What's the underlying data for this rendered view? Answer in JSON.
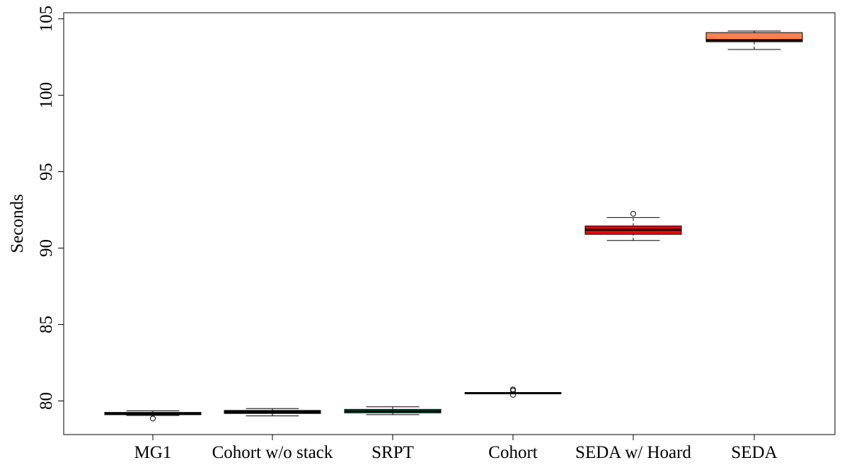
{
  "chart_data": {
    "type": "box",
    "title": "",
    "xlabel": "",
    "ylabel": "Seconds",
    "ylim": [
      77.8,
      105.4
    ],
    "yticks": [
      80,
      85,
      90,
      95,
      100,
      105
    ],
    "grid": false,
    "legend": "none",
    "categories": [
      "MG1",
      "Cohort w/o stack",
      "SRPT",
      "Cohort",
      "SEDA w/ Hoard",
      "SEDA"
    ],
    "boxes": [
      {
        "category": "MG1",
        "whisker_low": 79.05,
        "q1": 79.1,
        "median": 79.18,
        "q3": 79.25,
        "whisker_high": 79.35,
        "outliers": [
          78.85
        ],
        "color": "#2f8f8f"
      },
      {
        "category": "Cohort w/o stack",
        "whisker_low": 79.02,
        "q1": 79.18,
        "median": 79.28,
        "q3": 79.38,
        "whisker_high": 79.5,
        "outliers": [],
        "color": "#1a1a6e"
      },
      {
        "category": "SRPT",
        "whisker_low": 79.1,
        "q1": 79.22,
        "median": 79.33,
        "q3": 79.45,
        "whisker_high": 79.62,
        "outliers": [],
        "color": "#20b2aa"
      },
      {
        "category": "Cohort",
        "whisker_low": 80.48,
        "q1": 80.49,
        "median": 80.51,
        "q3": 80.53,
        "whisker_high": 80.55,
        "outliers": [
          80.4,
          80.68,
          80.75
        ],
        "color": "#87ceeb"
      },
      {
        "category": "SEDA w/ Hoard",
        "whisker_low": 90.5,
        "q1": 90.9,
        "median": 91.2,
        "q3": 91.45,
        "whisker_high": 92.0,
        "outliers": [
          92.25
        ],
        "color": "#ff0000"
      },
      {
        "category": "SEDA",
        "whisker_low": 103.0,
        "q1": 103.5,
        "median": 103.6,
        "q3": 104.1,
        "whisker_high": 104.2,
        "outliers": [],
        "color": "#ff7f50"
      }
    ]
  }
}
